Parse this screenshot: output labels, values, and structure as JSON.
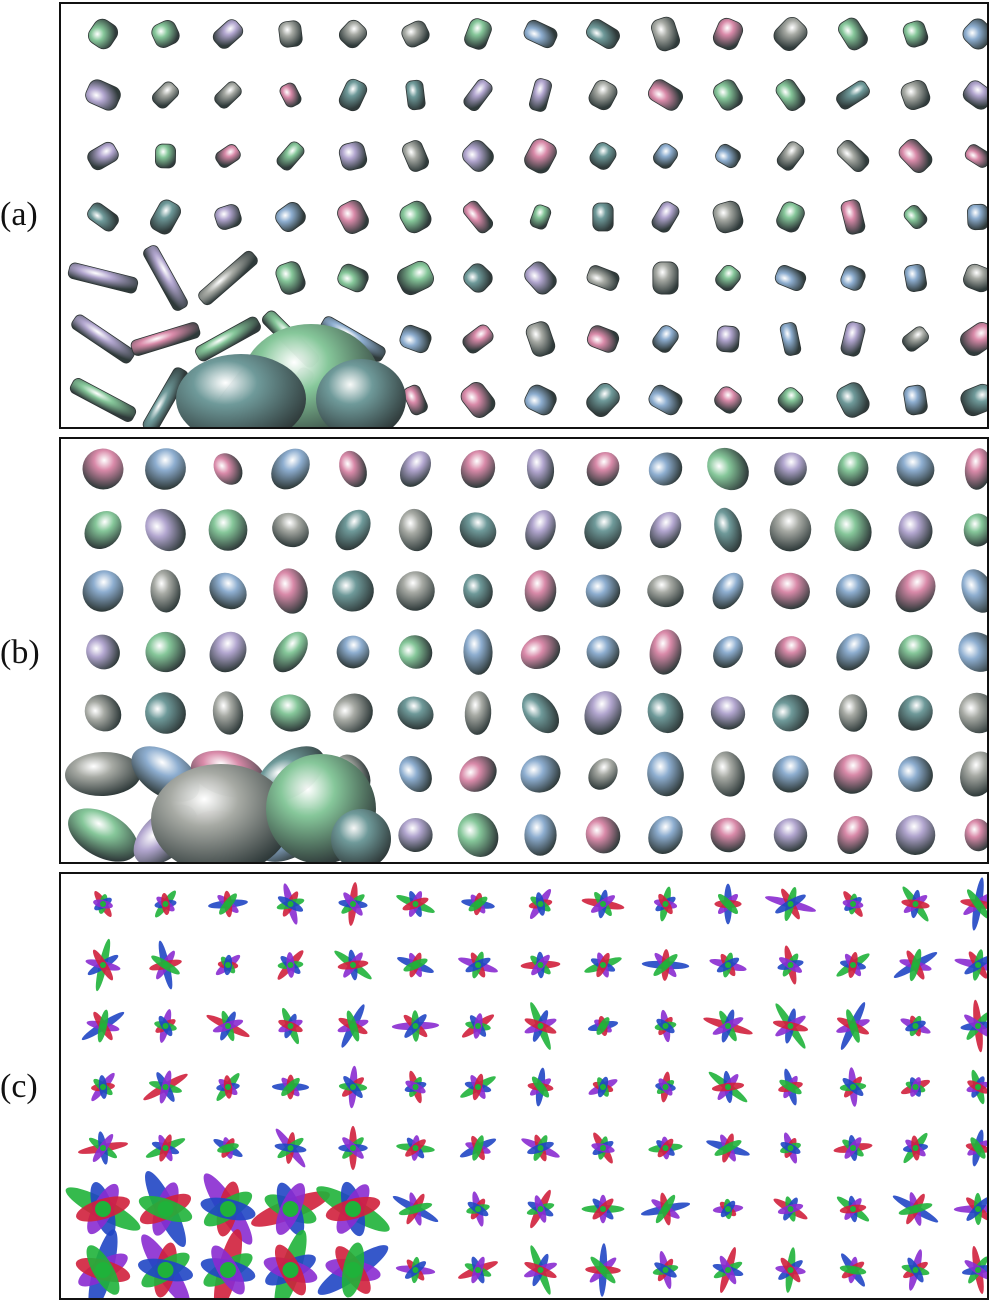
{
  "figure": {
    "panels": [
      {
        "label": "(a)",
        "glyph_style": "superquadric"
      },
      {
        "label": "(b)",
        "glyph_style": "ellipsoid"
      },
      {
        "label": "(c)",
        "glyph_style": "odf"
      }
    ]
  },
  "colors": {
    "pink": "#d98aa9",
    "green": "#86c79a",
    "teal": "#6f9a9a",
    "blue": "#8eaed0",
    "lavender": "#b2a6cf",
    "gray": "#a7aaa4",
    "odf_red": "#d0203c",
    "odf_green": "#1fb23a",
    "odf_blue": "#2046c4",
    "odf_purple": "#8a2bd0"
  }
}
